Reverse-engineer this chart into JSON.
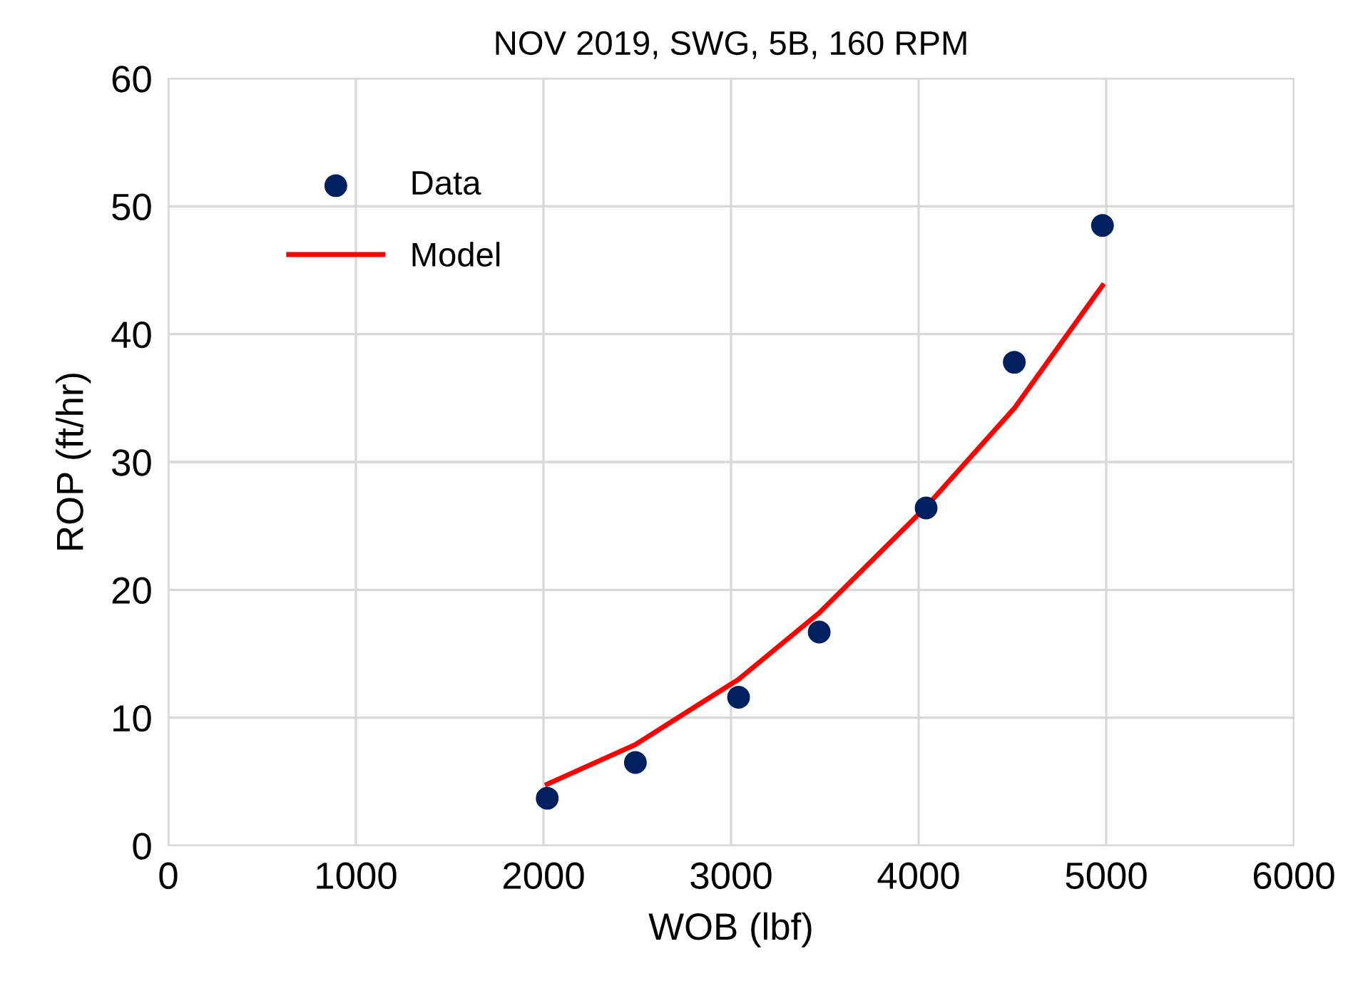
{
  "chart_data": {
    "type": "scatter",
    "title": "NOV 2019, SWG, 5B, 160 RPM",
    "xlabel": "WOB (lbf)",
    "ylabel": "ROP (ft/hr)",
    "series": [
      {
        "name": "Data",
        "color": "#002060",
        "marker": "circle",
        "x": [
          2020,
          2490,
          3040,
          3470,
          4040,
          4510,
          4980
        ],
        "values": [
          3.7,
          6.5,
          11.6,
          16.7,
          26.4,
          37.8,
          48.5
        ]
      },
      {
        "name": "Model",
        "type": "line",
        "color": "#ff0000",
        "marker": "none",
        "x": [
          2020,
          2490,
          3040,
          3470,
          4040,
          4510,
          4980
        ],
        "values": [
          4.8,
          7.9,
          13.0,
          18.2,
          26.5,
          34.2,
          43.8
        ]
      }
    ],
    "xlim": [
      0,
      6000
    ],
    "xticks": [
      0,
      1000,
      2000,
      3000,
      4000,
      5000,
      6000
    ],
    "ylim": [
      0,
      60
    ],
    "yticks": [
      0,
      10,
      20,
      30,
      40,
      50,
      60
    ],
    "grid": true,
    "legend": "top left"
  }
}
